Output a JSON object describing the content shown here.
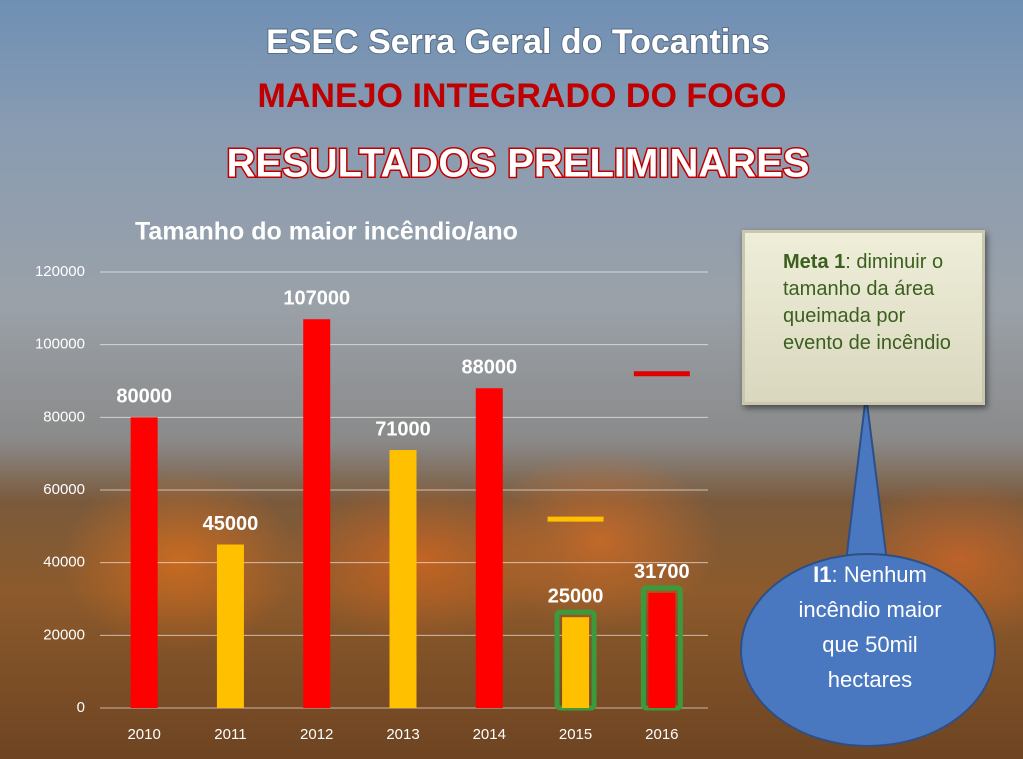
{
  "header": {
    "title": "ESEC Serra Geral do Tocantins",
    "subtitle": "MANEJO INTEGRADO DO FOGO",
    "heading": "RESULTADOS PRELIMINARES"
  },
  "chart_data": {
    "type": "bar",
    "title": "Tamanho do maior incêndio/ano",
    "categories": [
      "2010",
      "2011",
      "2012",
      "2013",
      "2014",
      "2015",
      "2016"
    ],
    "values": [
      80000,
      45000,
      107000,
      71000,
      88000,
      25000,
      31700
    ],
    "colors": [
      "#ff0000",
      "#ffc000",
      "#ff0000",
      "#ffc000",
      "#ff0000",
      "#ffc000",
      "#ff0000"
    ],
    "outline": [
      false,
      false,
      false,
      false,
      false,
      true,
      true
    ],
    "outline_color": "#3c9a3c",
    "reference_marks": [
      null,
      null,
      null,
      null,
      null,
      52000,
      92000
    ],
    "reference_colors": [
      null,
      null,
      null,
      null,
      null,
      "#ffc000",
      "#e00000"
    ],
    "ylim": [
      0,
      120000
    ],
    "yticks": [
      0,
      20000,
      40000,
      60000,
      80000,
      100000,
      120000
    ],
    "grid": true
  },
  "callouts": {
    "meta": {
      "label": "Meta 1",
      "text": ": diminuir o tamanho da área queimada por evento de incêndio"
    },
    "indicator": {
      "label": "I1",
      "text": ": Nenhum incêndio maior que 50mil hectares"
    }
  }
}
